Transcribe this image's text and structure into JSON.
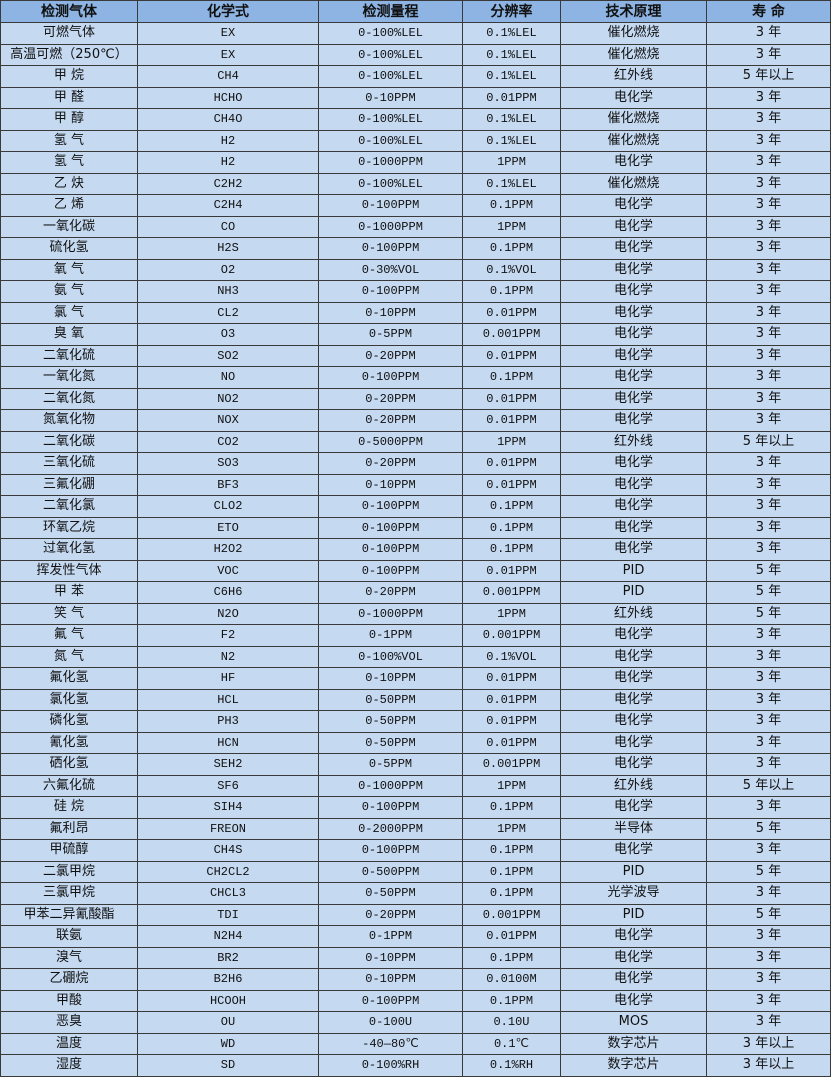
{
  "table": {
    "headers": [
      "检测气体",
      "化学式",
      "检测量程",
      "分辨率",
      "技术原理",
      "寿 命"
    ],
    "rows": [
      [
        "可燃气体",
        "EX",
        "0-100%LEL",
        "0.1%LEL",
        "催化燃烧",
        "3 年"
      ],
      [
        "高温可燃（250℃）",
        "EX",
        "0-100%LEL",
        "0.1%LEL",
        "催化燃烧",
        "3 年"
      ],
      [
        "甲 烷",
        "CH4",
        "0-100%LEL",
        "0.1%LEL",
        "红外线",
        "5 年以上"
      ],
      [
        "甲 醛",
        "HCHO",
        "0-10PPM",
        "0.01PPM",
        "电化学",
        "3 年"
      ],
      [
        "甲 醇",
        "CH4O",
        "0-100%LEL",
        "0.1%LEL",
        "催化燃烧",
        "3 年"
      ],
      [
        "氢 气",
        "H2",
        "0-100%LEL",
        "0.1%LEL",
        "催化燃烧",
        "3 年"
      ],
      [
        "氢 气",
        "H2",
        "0-1000PPM",
        "1PPM",
        "电化学",
        "3 年"
      ],
      [
        "乙 炔",
        "C2H2",
        "0-100%LEL",
        "0.1%LEL",
        "催化燃烧",
        "3 年"
      ],
      [
        "乙 烯",
        "C2H4",
        "0-100PPM",
        "0.1PPM",
        "电化学",
        "3 年"
      ],
      [
        "一氧化碳",
        "CO",
        "0-1000PPM",
        "1PPM",
        "电化学",
        "3 年"
      ],
      [
        "硫化氢",
        "H2S",
        "0-100PPM",
        "0.1PPM",
        "电化学",
        "3 年"
      ],
      [
        "氧 气",
        "O2",
        "0-30%VOL",
        "0.1%VOL",
        "电化学",
        "3 年"
      ],
      [
        "氨 气",
        "NH3",
        "0-100PPM",
        "0.1PPM",
        "电化学",
        "3 年"
      ],
      [
        "氯 气",
        "CL2",
        "0-10PPM",
        "0.01PPM",
        "电化学",
        "3 年"
      ],
      [
        "臭 氧",
        "O3",
        "0-5PPM",
        "0.001PPM",
        "电化学",
        "3 年"
      ],
      [
        "二氧化硫",
        "SO2",
        "0-20PPM",
        "0.01PPM",
        "电化学",
        "3 年"
      ],
      [
        "一氧化氮",
        "NO",
        "0-100PPM",
        "0.1PPM",
        "电化学",
        "3 年"
      ],
      [
        "二氧化氮",
        "NO2",
        "0-20PPM",
        "0.01PPM",
        "电化学",
        "3 年"
      ],
      [
        "氮氧化物",
        "NOX",
        "0-20PPM",
        "0.01PPM",
        "电化学",
        "3 年"
      ],
      [
        "二氧化碳",
        "CO2",
        "0-5000PPM",
        "1PPM",
        "红外线",
        "5 年以上"
      ],
      [
        "三氧化硫",
        "SO3",
        "0-20PPM",
        "0.01PPM",
        "电化学",
        "3 年"
      ],
      [
        "三氟化硼",
        "BF3",
        "0-10PPM",
        "0.01PPM",
        "电化学",
        "3 年"
      ],
      [
        "二氧化氯",
        "CLO2",
        "0-100PPM",
        "0.1PPM",
        "电化学",
        "3 年"
      ],
      [
        "环氧乙烷",
        "ETO",
        "0-100PPM",
        "0.1PPM",
        "电化学",
        "3 年"
      ],
      [
        "过氧化氢",
        "H2O2",
        "0-100PPM",
        "0.1PPM",
        "电化学",
        "3 年"
      ],
      [
        "挥发性气体",
        "VOC",
        "0-100PPM",
        "0.01PPM",
        "PID",
        "5 年"
      ],
      [
        "甲 苯",
        "C6H6",
        "0-20PPM",
        "0.001PPM",
        "PID",
        "5 年"
      ],
      [
        "笑 气",
        "N2O",
        "0-1000PPM",
        "1PPM",
        "红外线",
        "5 年"
      ],
      [
        "氟 气",
        "F2",
        "0-1PPM",
        "0.001PPM",
        "电化学",
        "3 年"
      ],
      [
        "氮 气",
        "N2",
        "0-100%VOL",
        "0.1%VOL",
        "电化学",
        "3 年"
      ],
      [
        "氟化氢",
        "HF",
        "0-10PPM",
        "0.01PPM",
        "电化学",
        "3 年"
      ],
      [
        "氯化氢",
        "HCL",
        "0-50PPM",
        "0.01PPM",
        "电化学",
        "3 年"
      ],
      [
        "磷化氢",
        "PH3",
        "0-50PPM",
        "0.01PPM",
        "电化学",
        "3 年"
      ],
      [
        "氰化氢",
        "HCN",
        "0-50PPM",
        "0.01PPM",
        "电化学",
        "3 年"
      ],
      [
        "硒化氢",
        "SEH2",
        "0-5PPM",
        "0.001PPM",
        "电化学",
        "3 年"
      ],
      [
        "六氟化硫",
        "SF6",
        "0-1000PPM",
        "1PPM",
        "红外线",
        "5 年以上"
      ],
      [
        "硅 烷",
        "SIH4",
        "0-100PPM",
        "0.1PPM",
        "电化学",
        "3 年"
      ],
      [
        "氟利昂",
        "FREON",
        "0-2000PPM",
        "1PPM",
        "半导体",
        "5 年"
      ],
      [
        "甲硫醇",
        "CH4S",
        "0-100PPM",
        "0.1PPM",
        "电化学",
        "3 年"
      ],
      [
        "二氯甲烷",
        "CH2CL2",
        "0-500PPM",
        "0.1PPM",
        "PID",
        "5 年"
      ],
      [
        "三氯甲烷",
        "CHCL3",
        "0-50PPM",
        "0.1PPM",
        "光学波导",
        "3 年"
      ],
      [
        "甲苯二异氰酸酯",
        "TDI",
        "0-20PPM",
        "0.001PPM",
        "PID",
        "5 年"
      ],
      [
        "联氨",
        "N2H4",
        "0-1PPM",
        "0.01PPM",
        "电化学",
        "3 年"
      ],
      [
        "溴气",
        "BR2",
        "0-10PPM",
        "0.1PPM",
        "电化学",
        "3 年"
      ],
      [
        "乙硼烷",
        "B2H6",
        "0-10PPM",
        "0.0100M",
        "电化学",
        "3 年"
      ],
      [
        "甲酸",
        "HCOOH",
        "0-100PPM",
        "0.1PPM",
        "电化学",
        "3 年"
      ],
      [
        "恶臭",
        "OU",
        "0-100U",
        "0.10U",
        "MOS",
        "3 年"
      ],
      [
        "温度",
        "WD",
        "-40—80℃",
        "0.1℃",
        "数字芯片",
        "3 年以上"
      ],
      [
        "湿度",
        "SD",
        "0-100%RH",
        "0.1%RH",
        "数字芯片",
        "3 年以上"
      ]
    ]
  },
  "colors": {
    "header_bg": "#8db4e2",
    "row_bg": "#c5d9f1",
    "border": "#3a3a3a"
  }
}
